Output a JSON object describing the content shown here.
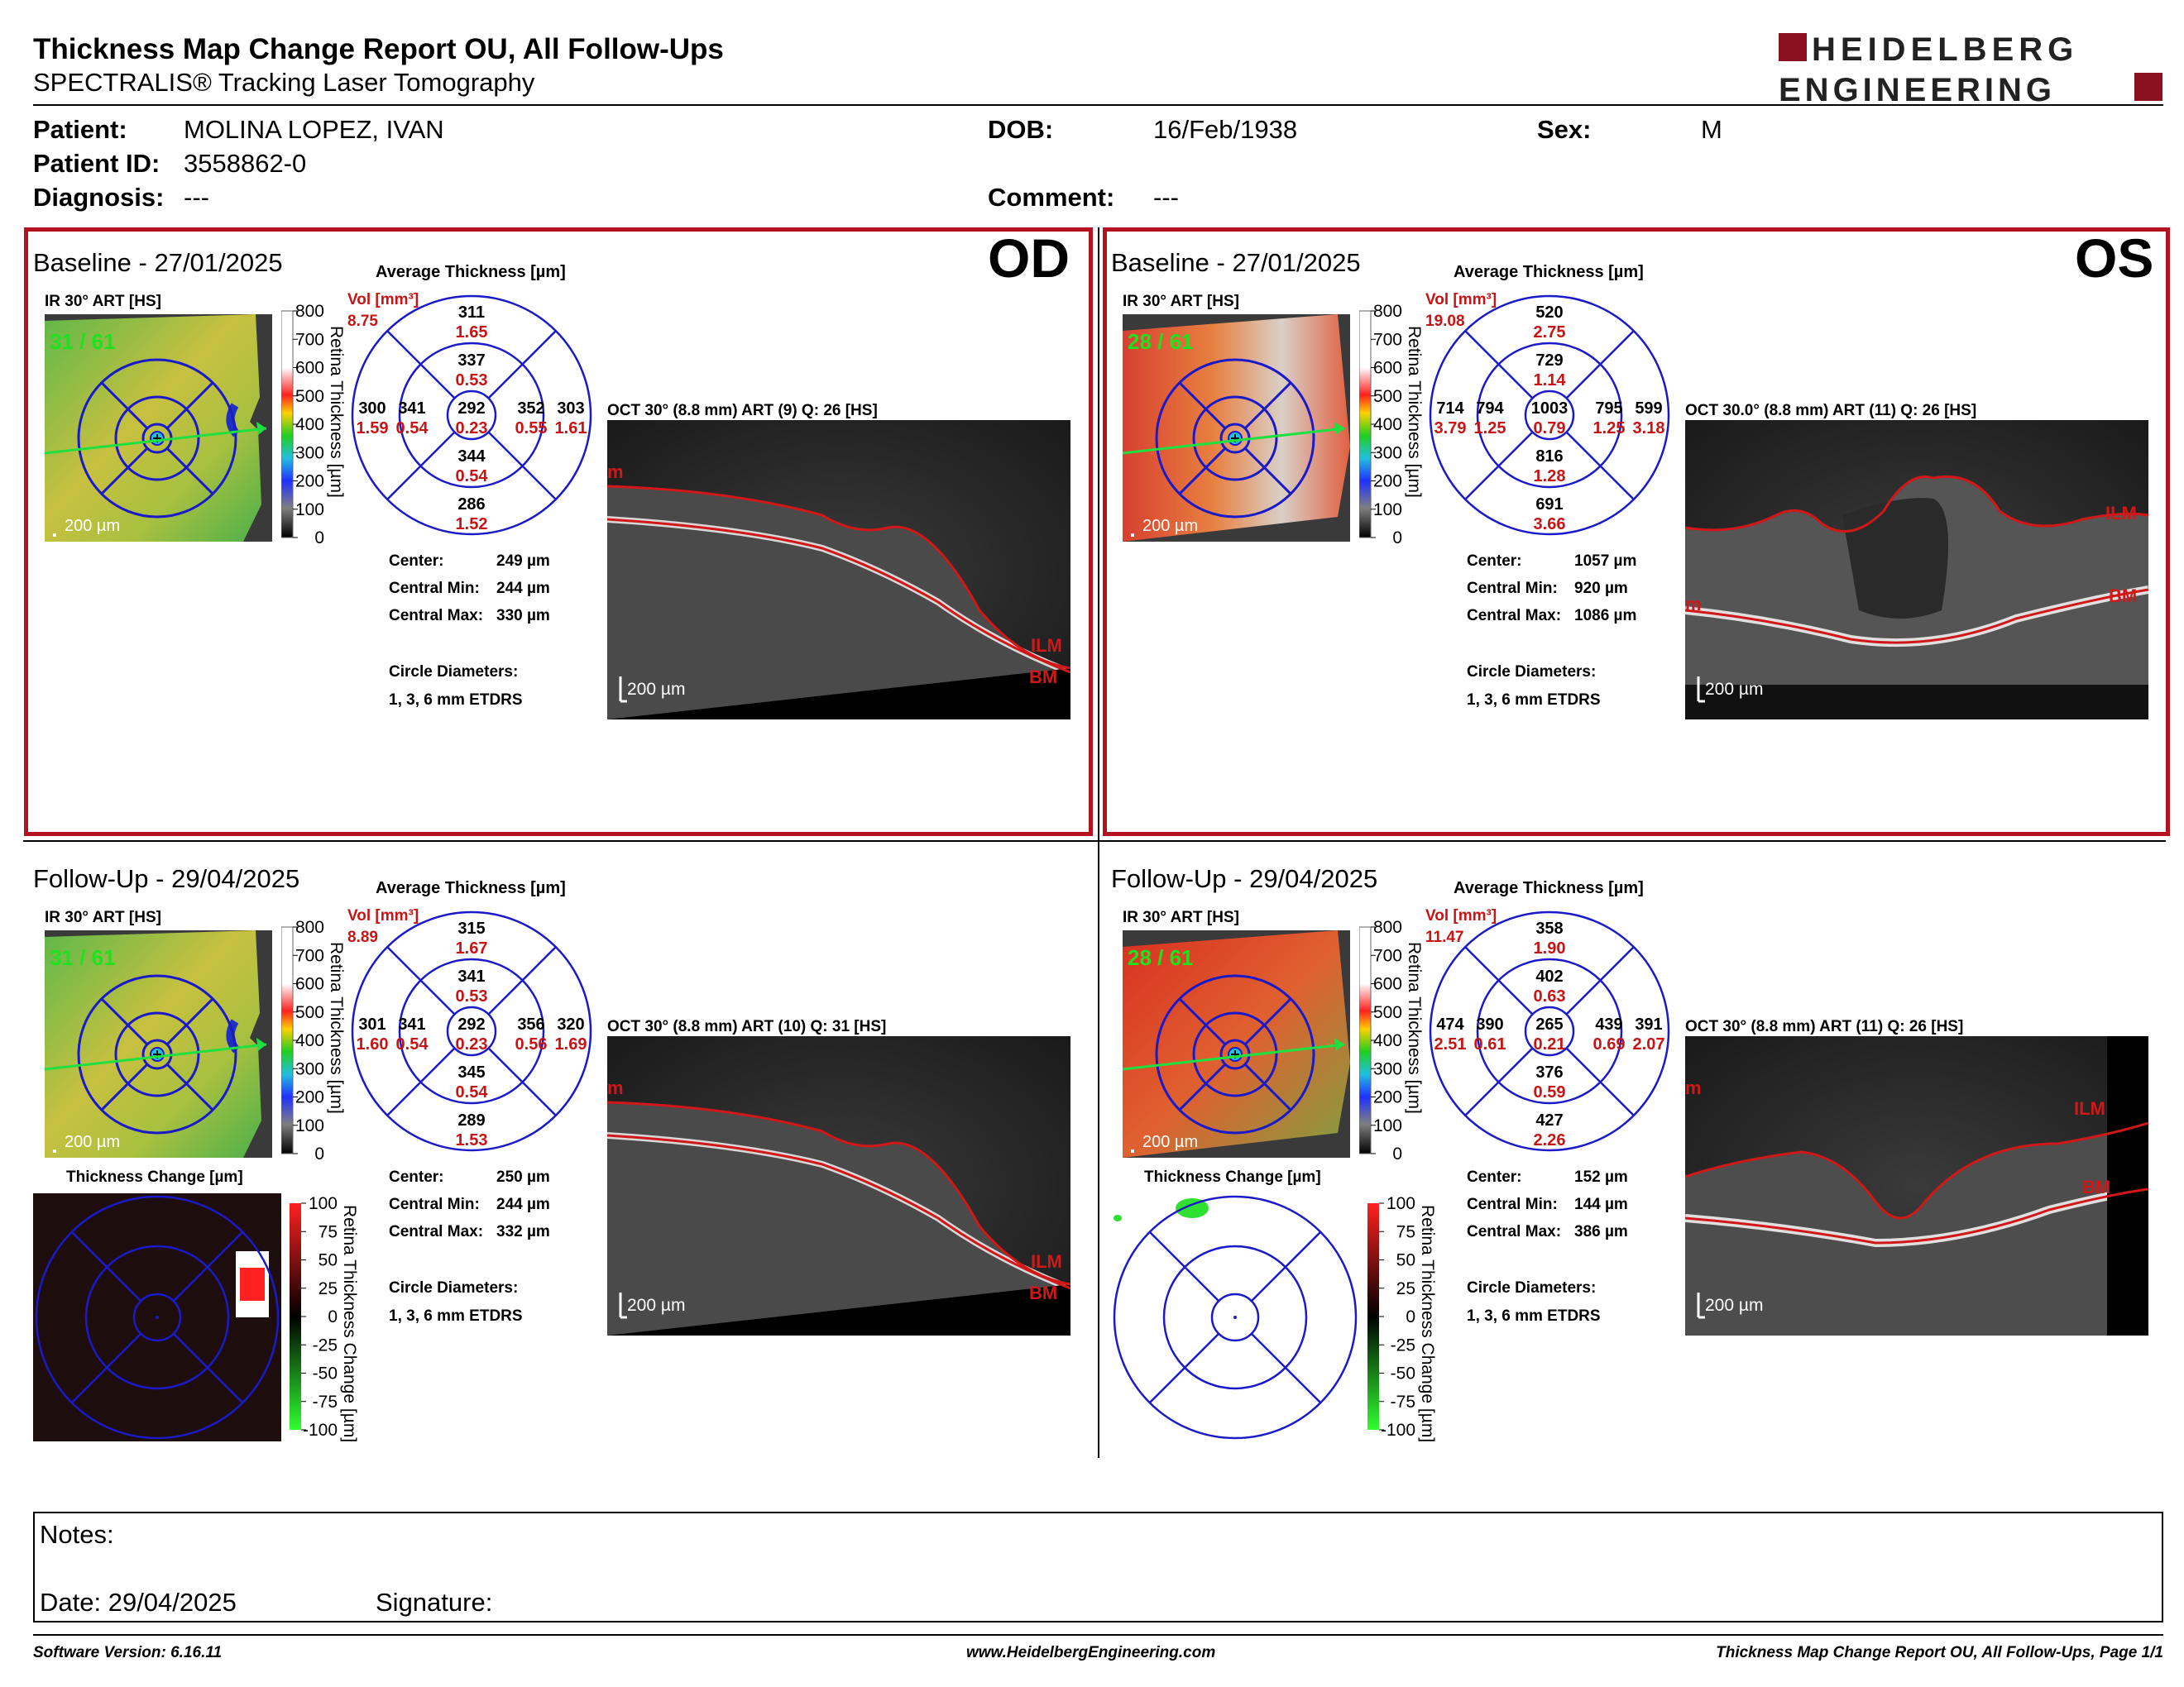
{
  "header": {
    "title": "Thickness Map Change Report OU, All Follow-Ups",
    "subtitle": "SPECTRALIS® Tracking Laser Tomography",
    "logo_line1": "HEIDELBERG",
    "logo_line2": "ENGINEERING"
  },
  "patient": {
    "patient_label": "Patient:",
    "patient_value": "MOLINA LOPEZ, IVAN",
    "id_label": "Patient ID:",
    "id_value": "3558862-0",
    "diagnosis_label": "Diagnosis:",
    "diagnosis_value": "---",
    "dob_label": "DOB:",
    "dob_value": "16/Feb/1938",
    "sex_label": "Sex:",
    "sex_value": "M",
    "comment_label": "Comment:",
    "comment_value": "---"
  },
  "colors": {
    "accent_red": "#b3121e",
    "grid_blue": "#1a1ac8",
    "vol_red": "#c81414"
  },
  "scale": {
    "thickness_ticks": [
      "800",
      "700",
      "600",
      "500",
      "400",
      "300",
      "200",
      "100",
      "0"
    ],
    "thickness_label": "Retina Thickness [µm]",
    "change_ticks": [
      "100",
      "75",
      "50",
      "25",
      "0",
      "-25",
      "-50",
      "-75",
      "-100"
    ],
    "change_label": "Retina Thickness Change [µm]",
    "micron_bar": "200 µm",
    "avg_title": "Average Thickness [µm]",
    "vol_label": "Vol [mm³]",
    "change_title": "Thickness Change [µm]",
    "center_label": "Center:",
    "cmin_label": "Central Min:",
    "cmax_label": "Central Max:",
    "diam_label": "Circle Diameters:",
    "diam_value": "1, 3, 6 mm ETDRS",
    "ilm": "ILM",
    "bm": "BM",
    "ilm_short": "m"
  },
  "od_label": "OD",
  "os_label": "OS",
  "panels": {
    "od_base": {
      "title": "Baseline - 27/01/2025",
      "ir_label": "IR 30° ART [HS]",
      "frames": "31 / 61",
      "vol": "8.75",
      "oct_label": "OCT 30° (8.8 mm) ART (9) Q: 26 [HS]",
      "etdrs": {
        "top_outer": "311",
        "top_outer_v": "1.65",
        "top_inner": "337",
        "top_inner_v": "0.53",
        "left_outer": "300",
        "left_outer_v": "1.59",
        "left_inner": "341",
        "left_inner_v": "0.54",
        "center": "292",
        "center_v": "0.23",
        "right_inner": "352",
        "right_inner_v": "0.55",
        "right_outer": "303",
        "right_outer_v": "1.61",
        "bottom_inner": "344",
        "bottom_inner_v": "0.54",
        "bottom_outer": "286",
        "bottom_outer_v": "1.52"
      },
      "center": "249 µm",
      "cmin": "244 µm",
      "cmax": "330 µm"
    },
    "os_base": {
      "title": "Baseline - 27/01/2025",
      "ir_label": "IR 30° ART [HS]",
      "frames": "28 / 61",
      "vol": "19.08",
      "oct_label": "OCT 30.0° (8.8 mm) ART (11) Q: 26 [HS]",
      "etdrs": {
        "top_outer": "520",
        "top_outer_v": "2.75",
        "top_inner": "729",
        "top_inner_v": "1.14",
        "left_outer": "714",
        "left_outer_v": "3.79",
        "left_inner": "794",
        "left_inner_v": "1.25",
        "center": "1003",
        "center_v": "0.79",
        "right_inner": "795",
        "right_inner_v": "1.25",
        "right_outer": "599",
        "right_outer_v": "3.18",
        "bottom_inner": "816",
        "bottom_inner_v": "1.28",
        "bottom_outer": "691",
        "bottom_outer_v": "3.66"
      },
      "center": "1057 µm",
      "cmin": "920 µm",
      "cmax": "1086 µm"
    },
    "od_fu": {
      "title": "Follow-Up - 29/04/2025",
      "ir_label": "IR 30° ART [HS]",
      "frames": "31 / 61",
      "vol": "8.89",
      "oct_label": "OCT 30° (8.8 mm) ART (10) Q: 31 [HS]",
      "etdrs": {
        "top_outer": "315",
        "top_outer_v": "1.67",
        "top_inner": "341",
        "top_inner_v": "0.53",
        "left_outer": "301",
        "left_outer_v": "1.60",
        "left_inner": "341",
        "left_inner_v": "0.54",
        "center": "292",
        "center_v": "0.23",
        "right_inner": "356",
        "right_inner_v": "0.56",
        "right_outer": "320",
        "right_outer_v": "1.69",
        "bottom_inner": "345",
        "bottom_inner_v": "0.54",
        "bottom_outer": "289",
        "bottom_outer_v": "1.53"
      },
      "center": "250 µm",
      "cmin": "244 µm",
      "cmax": "332 µm"
    },
    "os_fu": {
      "title": "Follow-Up - 29/04/2025",
      "ir_label": "IR 30° ART [HS]",
      "frames": "28 / 61",
      "vol": "11.47",
      "oct_label": "OCT 30° (8.8 mm) ART (11) Q: 26 [HS]",
      "etdrs": {
        "top_outer": "358",
        "top_outer_v": "1.90",
        "top_inner": "402",
        "top_inner_v": "0.63",
        "left_outer": "474",
        "left_outer_v": "2.51",
        "left_inner": "390",
        "left_inner_v": "0.61",
        "center": "265",
        "center_v": "0.21",
        "right_inner": "439",
        "right_inner_v": "0.69",
        "right_outer": "391",
        "right_outer_v": "2.07",
        "bottom_inner": "376",
        "bottom_inner_v": "0.59",
        "bottom_outer": "427",
        "bottom_outer_v": "2.26"
      },
      "center": "152 µm",
      "cmin": "144 µm",
      "cmax": "386 µm"
    }
  },
  "notes": {
    "notes_label": "Notes:",
    "date_label": "Date: 29/04/2025",
    "signature_label": "Signature:"
  },
  "footer": {
    "software": "Software Version: 6.16.11",
    "website": "www.HeidelbergEngineering.com",
    "page": "Thickness Map Change Report OU, All Follow-Ups, Page 1/1"
  }
}
